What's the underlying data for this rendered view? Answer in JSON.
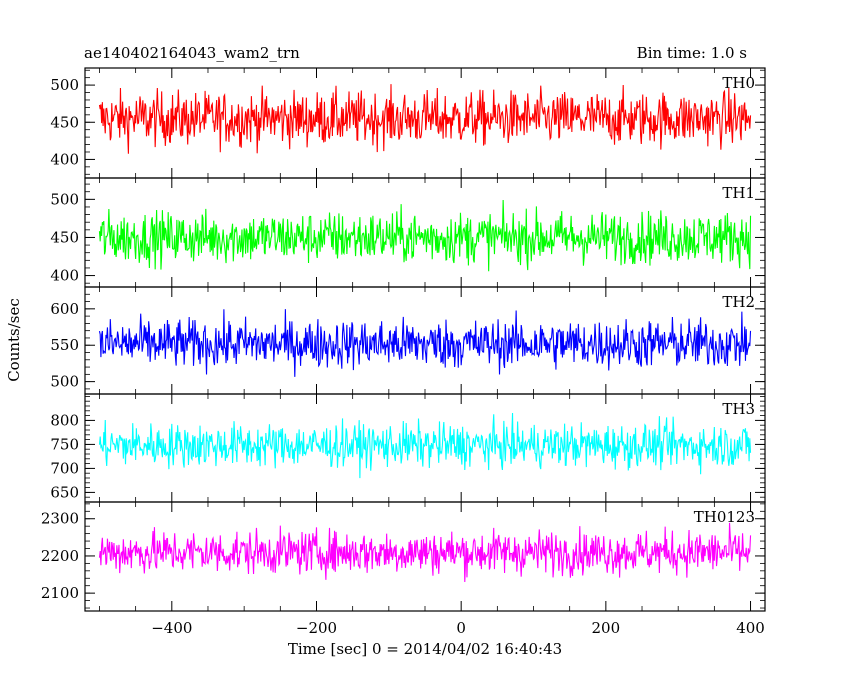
{
  "chart_data": {
    "type": "line",
    "title": "ae140402164043_wam2_trn",
    "bin_time": "Bin time: 1.0 s",
    "xlabel": "Time [sec] 0 = 2014/04/02 16:40:43",
    "ylabel": "Counts/sec",
    "xlim": [
      -520,
      420
    ],
    "x_ticks": [
      -400,
      -200,
      0,
      200,
      400
    ],
    "x_data_range": [
      -500,
      400
    ],
    "panels": [
      {
        "name": "TH0",
        "color": "#ff0000",
        "ylim": [
          375,
          523
        ],
        "y_ticks": [
          400,
          450,
          500
        ],
        "mean": 455,
        "spread": 62
      },
      {
        "name": "TH1",
        "color": "#00ff00",
        "ylim": [
          385,
          528
        ],
        "y_ticks": [
          400,
          450,
          500
        ],
        "mean": 450,
        "spread": 58
      },
      {
        "name": "TH2",
        "color": "#0000ff",
        "ylim": [
          483,
          630
        ],
        "y_ticks": [
          500,
          550,
          600
        ],
        "mean": 552,
        "spread": 58
      },
      {
        "name": "TH3",
        "color": "#00ffff",
        "ylim": [
          630,
          855
        ],
        "y_ticks": [
          650,
          700,
          750,
          800
        ],
        "mean": 748,
        "spread": 78
      },
      {
        "name": "TH0123",
        "color": "#ff00ff",
        "ylim": [
          2052,
          2345
        ],
        "y_ticks": [
          2100,
          2200,
          2300
        ],
        "mean": 2210,
        "spread": 100
      }
    ]
  }
}
